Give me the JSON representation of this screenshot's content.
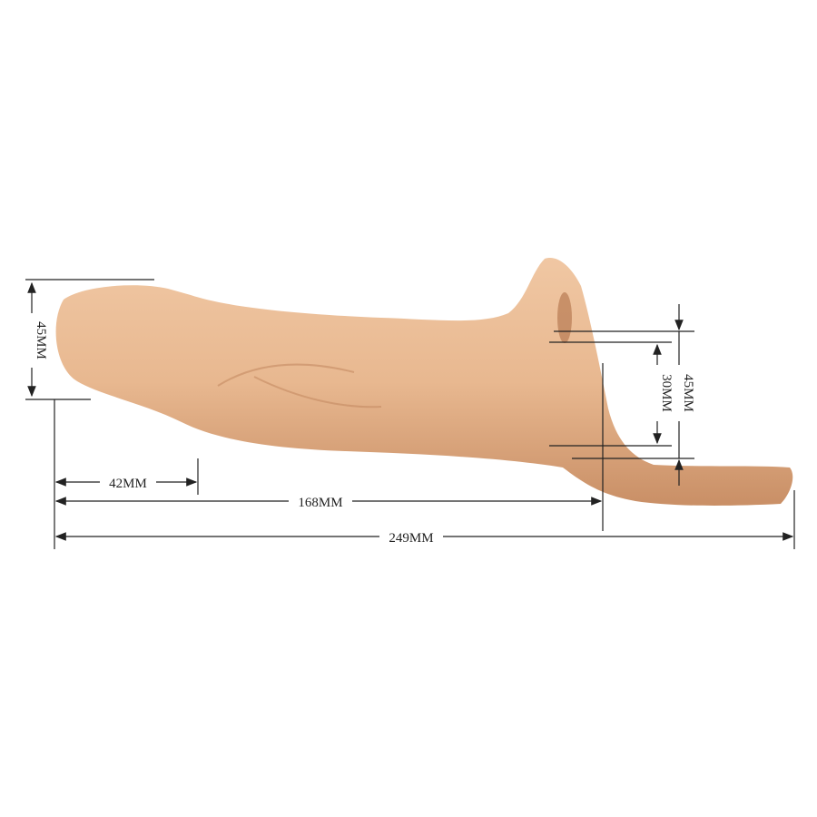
{
  "dimensions": {
    "head_diameter": "45MM",
    "head_length": "42MM",
    "insertable_length": "168MM",
    "total_length": "249MM",
    "opening_diameter": "30MM",
    "ring_diameter": "45MM"
  },
  "colors": {
    "product": "#e8b890",
    "product_shadow": "#c98f66",
    "lines": "#222222"
  }
}
